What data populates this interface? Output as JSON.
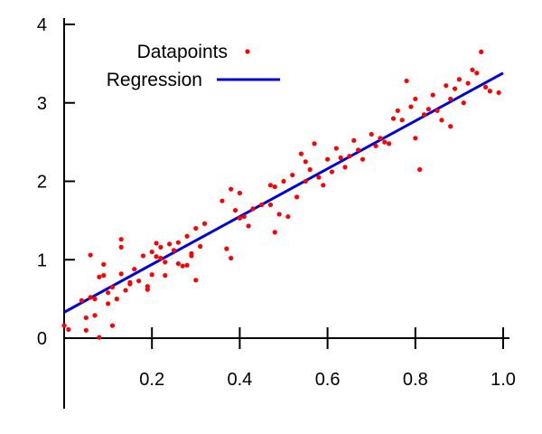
{
  "chart_data": {
    "type": "scatter",
    "title": "",
    "xlabel": "",
    "ylabel": "",
    "xlim": [
      0,
      1.0
    ],
    "ylim": [
      0,
      4
    ],
    "x_ticks": [
      "0.2",
      "0.4",
      "0.6",
      "0.8",
      "1.0"
    ],
    "y_ticks": [
      "0",
      "1",
      "2",
      "3",
      "4"
    ],
    "x_tick_values": [
      0.2,
      0.4,
      0.6,
      0.8,
      1.0
    ],
    "y_tick_values": [
      0,
      1,
      2,
      3,
      4
    ],
    "grid": false,
    "legend_position": "top-left",
    "series": [
      {
        "name": "Datapoints",
        "kind": "scatter",
        "color": "#ff0000",
        "points": [
          [
            0.0,
            0.16
          ],
          [
            0.01,
            0.11
          ],
          [
            0.04,
            0.48
          ],
          [
            0.05,
            0.26
          ],
          [
            0.05,
            0.1
          ],
          [
            0.06,
            0.52
          ],
          [
            0.06,
            1.06
          ],
          [
            0.07,
            0.5
          ],
          [
            0.07,
            0.29
          ],
          [
            0.08,
            0.78
          ],
          [
            0.08,
            0.01
          ],
          [
            0.09,
            0.8
          ],
          [
            0.09,
            0.94
          ],
          [
            0.1,
            0.58
          ],
          [
            0.1,
            0.44
          ],
          [
            0.11,
            0.16
          ],
          [
            0.11,
            0.65
          ],
          [
            0.12,
            0.5
          ],
          [
            0.13,
            0.82
          ],
          [
            0.13,
            1.16
          ],
          [
            0.13,
            1.26
          ],
          [
            0.14,
            0.61
          ],
          [
            0.15,
            0.71
          ],
          [
            0.15,
            0.69
          ],
          [
            0.16,
            0.88
          ],
          [
            0.17,
            0.73
          ],
          [
            0.18,
            1.05
          ],
          [
            0.19,
            0.66
          ],
          [
            0.19,
            0.62
          ],
          [
            0.2,
            1.1
          ],
          [
            0.2,
            0.81
          ],
          [
            0.21,
            1.21
          ],
          [
            0.21,
            1.04
          ],
          [
            0.22,
            1.02
          ],
          [
            0.22,
            1.16
          ],
          [
            0.23,
            0.97
          ],
          [
            0.23,
            0.8
          ],
          [
            0.24,
            1.2
          ],
          [
            0.25,
            1.12
          ],
          [
            0.26,
            0.95
          ],
          [
            0.26,
            1.22
          ],
          [
            0.27,
            0.92
          ],
          [
            0.28,
            0.93
          ],
          [
            0.28,
            1.3
          ],
          [
            0.29,
            1.05
          ],
          [
            0.29,
            1.08
          ],
          [
            0.3,
            0.74
          ],
          [
            0.3,
            1.4
          ],
          [
            0.31,
            1.17
          ],
          [
            0.32,
            1.46
          ],
          [
            0.36,
            1.75
          ],
          [
            0.37,
            1.14
          ],
          [
            0.38,
            1.02
          ],
          [
            0.38,
            1.9
          ],
          [
            0.39,
            1.63
          ],
          [
            0.4,
            1.53
          ],
          [
            0.4,
            1.85
          ],
          [
            0.41,
            1.55
          ],
          [
            0.42,
            1.43
          ],
          [
            0.43,
            1.65
          ],
          [
            0.45,
            1.7
          ],
          [
            0.47,
            1.95
          ],
          [
            0.47,
            1.7
          ],
          [
            0.48,
            1.35
          ],
          [
            0.48,
            1.93
          ],
          [
            0.49,
            1.58
          ],
          [
            0.5,
            2.0
          ],
          [
            0.51,
            1.55
          ],
          [
            0.52,
            2.08
          ],
          [
            0.53,
            1.8
          ],
          [
            0.54,
            2.35
          ],
          [
            0.55,
            2.0
          ],
          [
            0.55,
            2.25
          ],
          [
            0.56,
            2.15
          ],
          [
            0.57,
            2.48
          ],
          [
            0.58,
            2.05
          ],
          [
            0.59,
            1.95
          ],
          [
            0.6,
            2.28
          ],
          [
            0.61,
            2.12
          ],
          [
            0.62,
            2.42
          ],
          [
            0.63,
            2.3
          ],
          [
            0.64,
            2.18
          ],
          [
            0.65,
            2.32
          ],
          [
            0.66,
            2.52
          ],
          [
            0.67,
            2.4
          ],
          [
            0.68,
            2.28
          ],
          [
            0.7,
            2.6
          ],
          [
            0.71,
            2.45
          ],
          [
            0.72,
            2.55
          ],
          [
            0.73,
            2.5
          ],
          [
            0.74,
            2.48
          ],
          [
            0.75,
            2.8
          ],
          [
            0.76,
            2.9
          ],
          [
            0.77,
            2.78
          ],
          [
            0.78,
            3.28
          ],
          [
            0.79,
            2.95
          ],
          [
            0.8,
            3.05
          ],
          [
            0.8,
            2.55
          ],
          [
            0.81,
            2.15
          ],
          [
            0.82,
            2.85
          ],
          [
            0.83,
            2.92
          ],
          [
            0.84,
            3.1
          ],
          [
            0.85,
            2.9
          ],
          [
            0.86,
            2.78
          ],
          [
            0.87,
            3.22
          ],
          [
            0.88,
            2.7
          ],
          [
            0.88,
            3.05
          ],
          [
            0.89,
            3.18
          ],
          [
            0.9,
            3.3
          ],
          [
            0.91,
            3.0
          ],
          [
            0.92,
            3.25
          ],
          [
            0.93,
            3.42
          ],
          [
            0.94,
            3.38
          ],
          [
            0.95,
            3.65
          ],
          [
            0.96,
            3.2
          ],
          [
            0.97,
            3.15
          ],
          [
            0.99,
            3.13
          ]
        ]
      },
      {
        "name": "Regression",
        "kind": "line",
        "color": "#0000dd",
        "points": [
          [
            0.0,
            0.33
          ],
          [
            1.0,
            3.38
          ]
        ]
      }
    ]
  }
}
